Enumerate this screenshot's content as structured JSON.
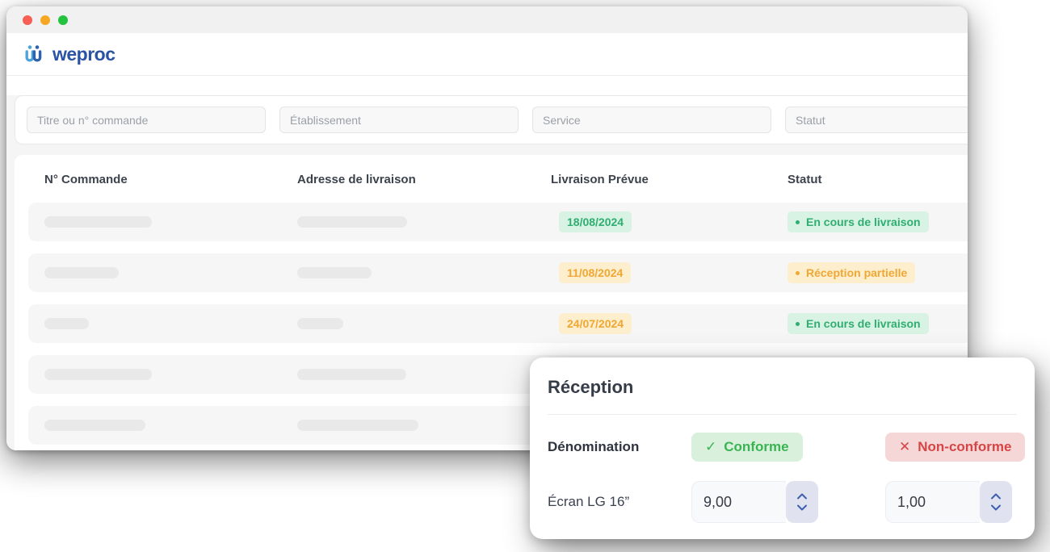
{
  "window": {
    "brand": "weproc",
    "traffic_lights": [
      "close",
      "minimize",
      "maximize"
    ]
  },
  "filters": {
    "search_placeholder": "Titre ou n° commande",
    "etablissement_placeholder": "Établissement",
    "service_placeholder": "Service",
    "statut_placeholder": "Statut"
  },
  "table": {
    "columns": {
      "commande": "N° Commande",
      "adresse": "Adresse de livraison",
      "livraison": "Livraison Prévue",
      "statut": "Statut"
    },
    "rows": [
      {
        "bar1": 133,
        "bar2": 136,
        "date": "18/08/2024",
        "date_variant": "green",
        "status": "En cours de livraison",
        "status_variant": "green"
      },
      {
        "bar1": 92,
        "bar2": 92,
        "date": "11/08/2024",
        "date_variant": "amber",
        "status": "Réception partielle",
        "status_variant": "amber"
      },
      {
        "bar1": 55,
        "bar2": 57,
        "date": "24/07/2024",
        "date_variant": "amber",
        "status": "En cours de livraison",
        "status_variant": "green"
      },
      {
        "bar1": 133,
        "bar2": 135
      },
      {
        "bar1": 125,
        "bar2": 150
      }
    ]
  },
  "reception": {
    "title": "Réception",
    "item_column_label": "Dénomination",
    "conforme_label": "Conforme",
    "conforme_mark": "✓",
    "non_conforme_label": "Non-conforme",
    "non_conforme_mark": "✕",
    "item": {
      "name": "Écran LG 16”",
      "conforme_qty": "9,00",
      "non_conforme_qty": "1,00"
    }
  },
  "colors": {
    "brand_blue": "#2b53a3",
    "logo_light_blue": "#4da4dc",
    "logo_dark_blue": "#2d62ae",
    "badge_green_bg": "#d8f2e3",
    "badge_green_text": "#2fae71",
    "badge_amber_bg": "#fdeecd",
    "badge_amber_text": "#f0a733",
    "conforme_bg": "#d9f0dc",
    "conforme_text": "#3ab452",
    "non_conforme_bg": "#f6d7d7",
    "non_conforme_text": "#d64545",
    "stepper_bg": "#e0e3ef",
    "stepper_arrow": "#3c5fb0",
    "traffic_red": "#f75e54",
    "traffic_yellow": "#f7a823",
    "traffic_green": "#23c33f"
  }
}
